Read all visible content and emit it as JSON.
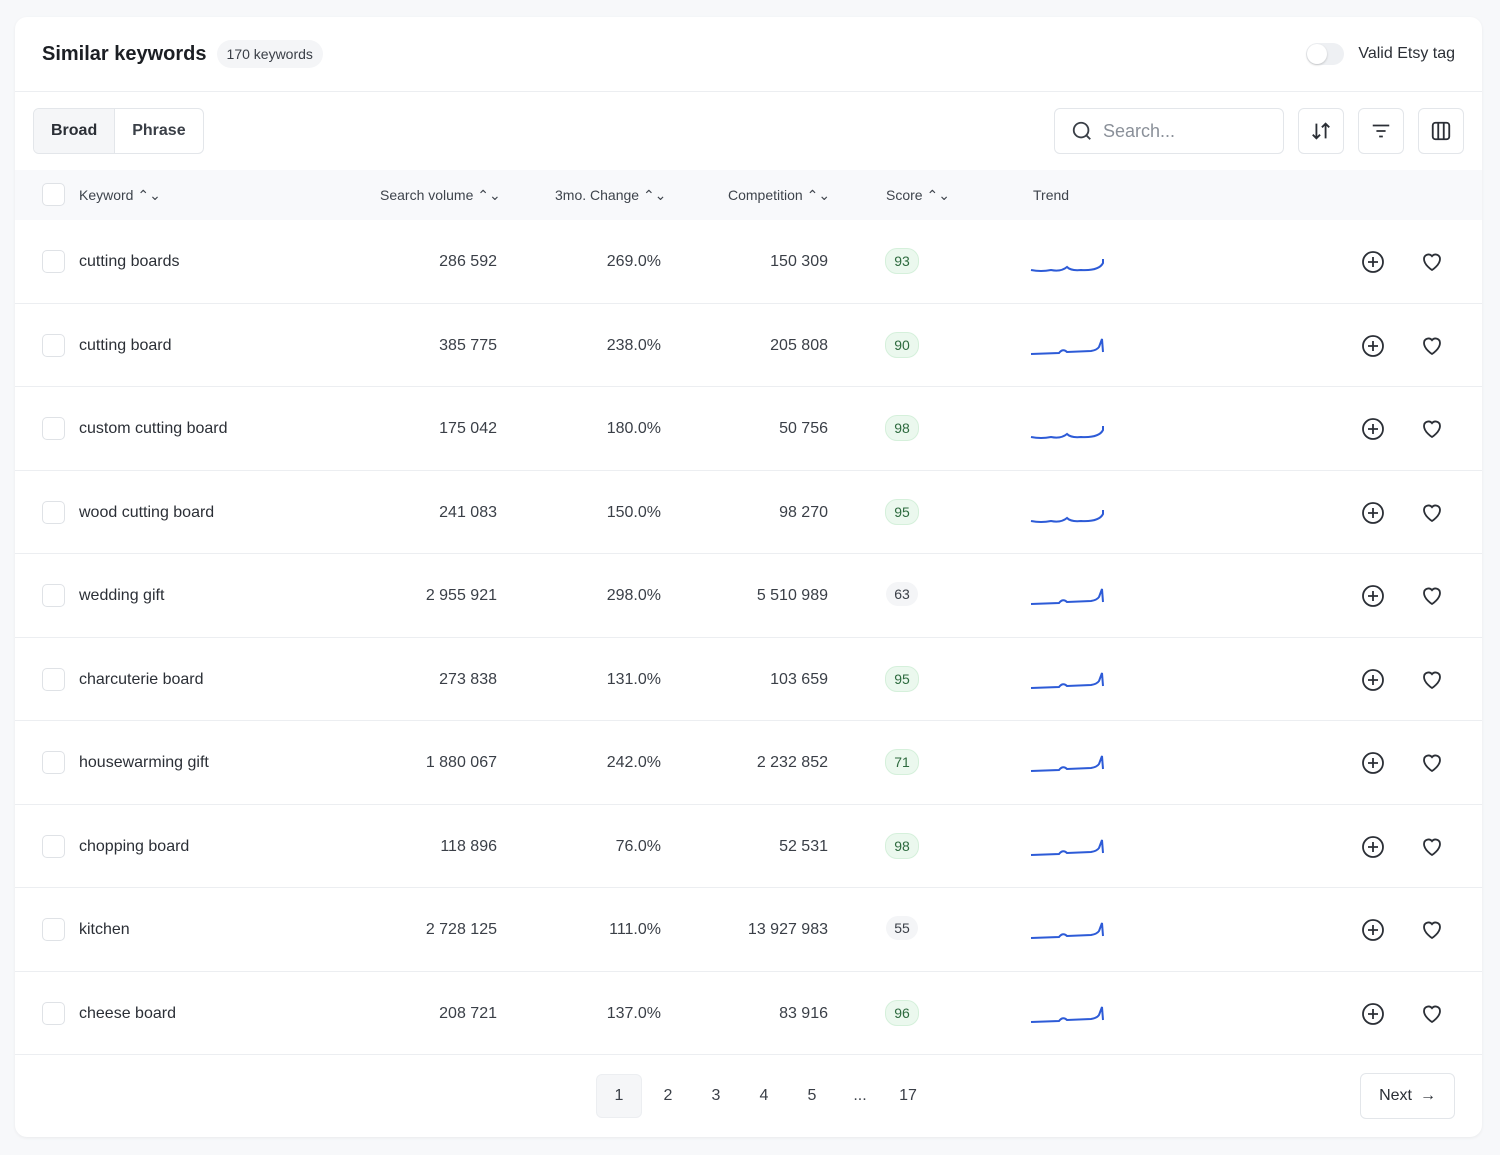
{
  "header": {
    "title": "Similar keywords",
    "count": "170 keywords",
    "toggle_label": "Valid Etsy tag",
    "toggle_on": false
  },
  "toolbar": {
    "tabs": [
      {
        "label": "Broad",
        "active": true
      },
      {
        "label": "Phrase",
        "active": false
      }
    ],
    "search_placeholder": "Search...",
    "icons": [
      "sort-icon",
      "filter-icon",
      "columns-icon"
    ]
  },
  "columns": [
    "Keyword",
    "Search volume",
    "3mo. Change",
    "Competition",
    "Score",
    "Trend"
  ],
  "rows": [
    {
      "keyword": "cutting boards",
      "volume": "286 592",
      "change": "269.0%",
      "competition": "150 309",
      "score": "93",
      "trend": "curve-up"
    },
    {
      "keyword": "cutting board",
      "volume": "385 775",
      "change": "238.0%",
      "competition": "205 808",
      "score": "90",
      "trend": "spike-end"
    },
    {
      "keyword": "custom cutting board",
      "volume": "175 042",
      "change": "180.0%",
      "competition": "50 756",
      "score": "98",
      "trend": "curve-up"
    },
    {
      "keyword": "wood cutting board",
      "volume": "241 083",
      "change": "150.0%",
      "competition": "98 270",
      "score": "95",
      "trend": "curve-up"
    },
    {
      "keyword": "wedding gift",
      "volume": "2 955 921",
      "change": "298.0%",
      "competition": "5 510 989",
      "score": "63",
      "trend": "spike-end"
    },
    {
      "keyword": "charcuterie board",
      "volume": "273 838",
      "change": "131.0%",
      "competition": "103 659",
      "score": "95",
      "trend": "spike-end"
    },
    {
      "keyword": "housewarming gift",
      "volume": "1 880 067",
      "change": "242.0%",
      "competition": "2 232 852",
      "score": "71",
      "trend": "spike-end"
    },
    {
      "keyword": "chopping board",
      "volume": "118 896",
      "change": "76.0%",
      "competition": "52 531",
      "score": "98",
      "trend": "spike-end"
    },
    {
      "keyword": "kitchen",
      "volume": "2 728 125",
      "change": "111.0%",
      "competition": "13 927 983",
      "score": "55",
      "trend": "spike-end"
    },
    {
      "keyword": "cheese board",
      "volume": "208 721",
      "change": "137.0%",
      "competition": "83 916",
      "score": "96",
      "trend": "spike-end"
    }
  ],
  "pagination": {
    "pages": [
      "1",
      "2",
      "3",
      "4",
      "5",
      "...",
      "17"
    ],
    "current": "1",
    "next_label": "Next"
  },
  "colors": {
    "trend": "#2d5bd7",
    "score_good_bg": "#ebf8ee",
    "score_good_text": "#2d6a3e"
  }
}
